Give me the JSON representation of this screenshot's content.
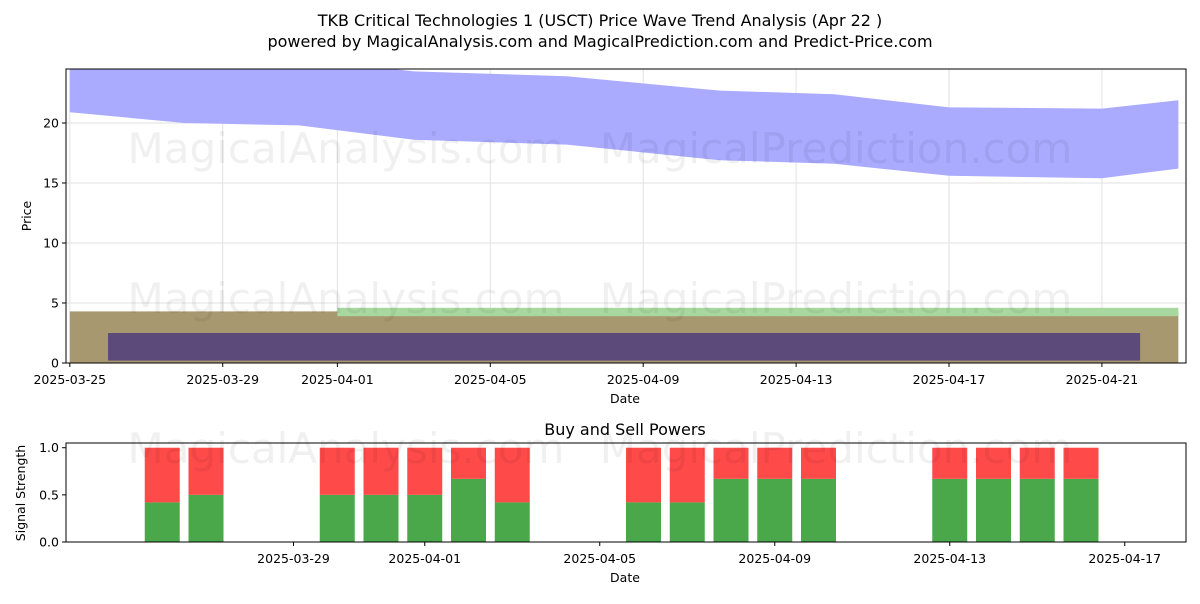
{
  "title_line1": "TKB Critical Technologies 1 (USCT) Price Wave Trend Analysis (Apr 22 )",
  "title_line2": "powered by MagicalAnalysis.com and MagicalPrediction.com and Predict-Price.com",
  "watermarks": [
    "MagicalAnalysis.com",
    "MagicalPrediction.com"
  ],
  "colors": {
    "upper_band": "#aaaaff",
    "lower_band_outer": "#a89870",
    "green_band": "#a8d8a0",
    "lower_band_inner": "#5c4a7a",
    "buy": "#4aa84a",
    "sell": "#ff4a4a"
  },
  "chart_data": [
    {
      "type": "area",
      "xlabel": "Date",
      "ylabel": "Price",
      "ylim": [
        0,
        24.5
      ],
      "xlim": [
        "2025-03-25",
        "2025-04-23"
      ],
      "grid": true,
      "y_ticks": [
        0,
        5,
        10,
        15,
        20
      ],
      "x_ticks": [
        "2025-03-25",
        "2025-03-29",
        "2025-04-01",
        "2025-04-05",
        "2025-04-09",
        "2025-04-13",
        "2025-04-17",
        "2025-04-21"
      ],
      "upper_band": {
        "x": [
          "2025-03-25",
          "2025-03-28",
          "2025-03-31",
          "2025-04-03",
          "2025-04-07",
          "2025-04-11",
          "2025-04-14",
          "2025-04-17",
          "2025-04-21",
          "2025-04-23"
        ],
        "high": [
          25.5,
          26.0,
          25.4,
          24.3,
          23.9,
          22.7,
          22.4,
          21.3,
          21.2,
          21.9
        ],
        "low": [
          20.9,
          20.0,
          19.8,
          18.6,
          18.2,
          16.9,
          16.6,
          15.6,
          15.4,
          16.2
        ]
      },
      "lower_bands": [
        {
          "name": "outer",
          "from": "2025-03-25",
          "to": "2025-04-23",
          "low": 0.0,
          "high": 4.3
        },
        {
          "name": "green",
          "from": "2025-04-01",
          "to": "2025-04-23",
          "low": 3.9,
          "high": 4.6
        },
        {
          "name": "inner",
          "from": "2025-03-26",
          "to": "2025-04-22",
          "low": 0.2,
          "high": 2.5
        }
      ]
    },
    {
      "type": "bar",
      "title": "Buy and Sell Powers",
      "xlabel": "Date",
      "ylabel": "Signal Strength",
      "ylim": [
        0,
        1.05
      ],
      "y_ticks": [
        0.0,
        0.5,
        1.0
      ],
      "x_ticks": [
        "2025-03-29",
        "2025-04-01",
        "2025-04-05",
        "2025-04-09",
        "2025-04-13",
        "2025-04-17"
      ],
      "categories": [
        "2025-03-26",
        "2025-03-27",
        "2025-03-30",
        "2025-03-31",
        "2025-04-01",
        "2025-04-02",
        "2025-04-03",
        "2025-04-06",
        "2025-04-07",
        "2025-04-08",
        "2025-04-09",
        "2025-04-10",
        "2025-04-13",
        "2025-04-14",
        "2025-04-15",
        "2025-04-16"
      ],
      "series": [
        {
          "values": [
            0.42,
            0.5,
            0.5,
            0.5,
            0.5,
            0.67,
            0.42,
            0.42,
            0.42,
            0.67,
            0.67,
            0.67,
            0.67,
            0.67,
            0.67,
            0.67
          ]
        },
        {
          "values": [
            0.58,
            0.5,
            0.5,
            0.5,
            0.5,
            0.33,
            0.58,
            0.58,
            0.58,
            0.33,
            0.33,
            0.33,
            0.33,
            0.33,
            0.33,
            0.33
          ]
        }
      ]
    }
  ]
}
